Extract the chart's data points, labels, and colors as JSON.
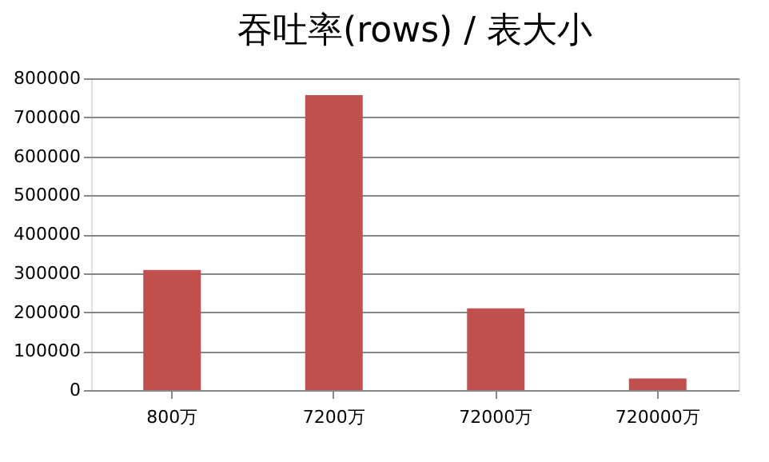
{
  "chart_data": {
    "type": "bar",
    "title": "吞吐率(rows) / 表大小",
    "categories": [
      "800万",
      "7200万",
      "72000万",
      "720000万"
    ],
    "values": [
      308000,
      757000,
      210000,
      30000
    ],
    "color": "#c0504d",
    "ylim": [
      0,
      800000
    ],
    "yticks": [
      0,
      100000,
      200000,
      300000,
      400000,
      500000,
      600000,
      700000,
      800000
    ],
    "grid": "y"
  }
}
